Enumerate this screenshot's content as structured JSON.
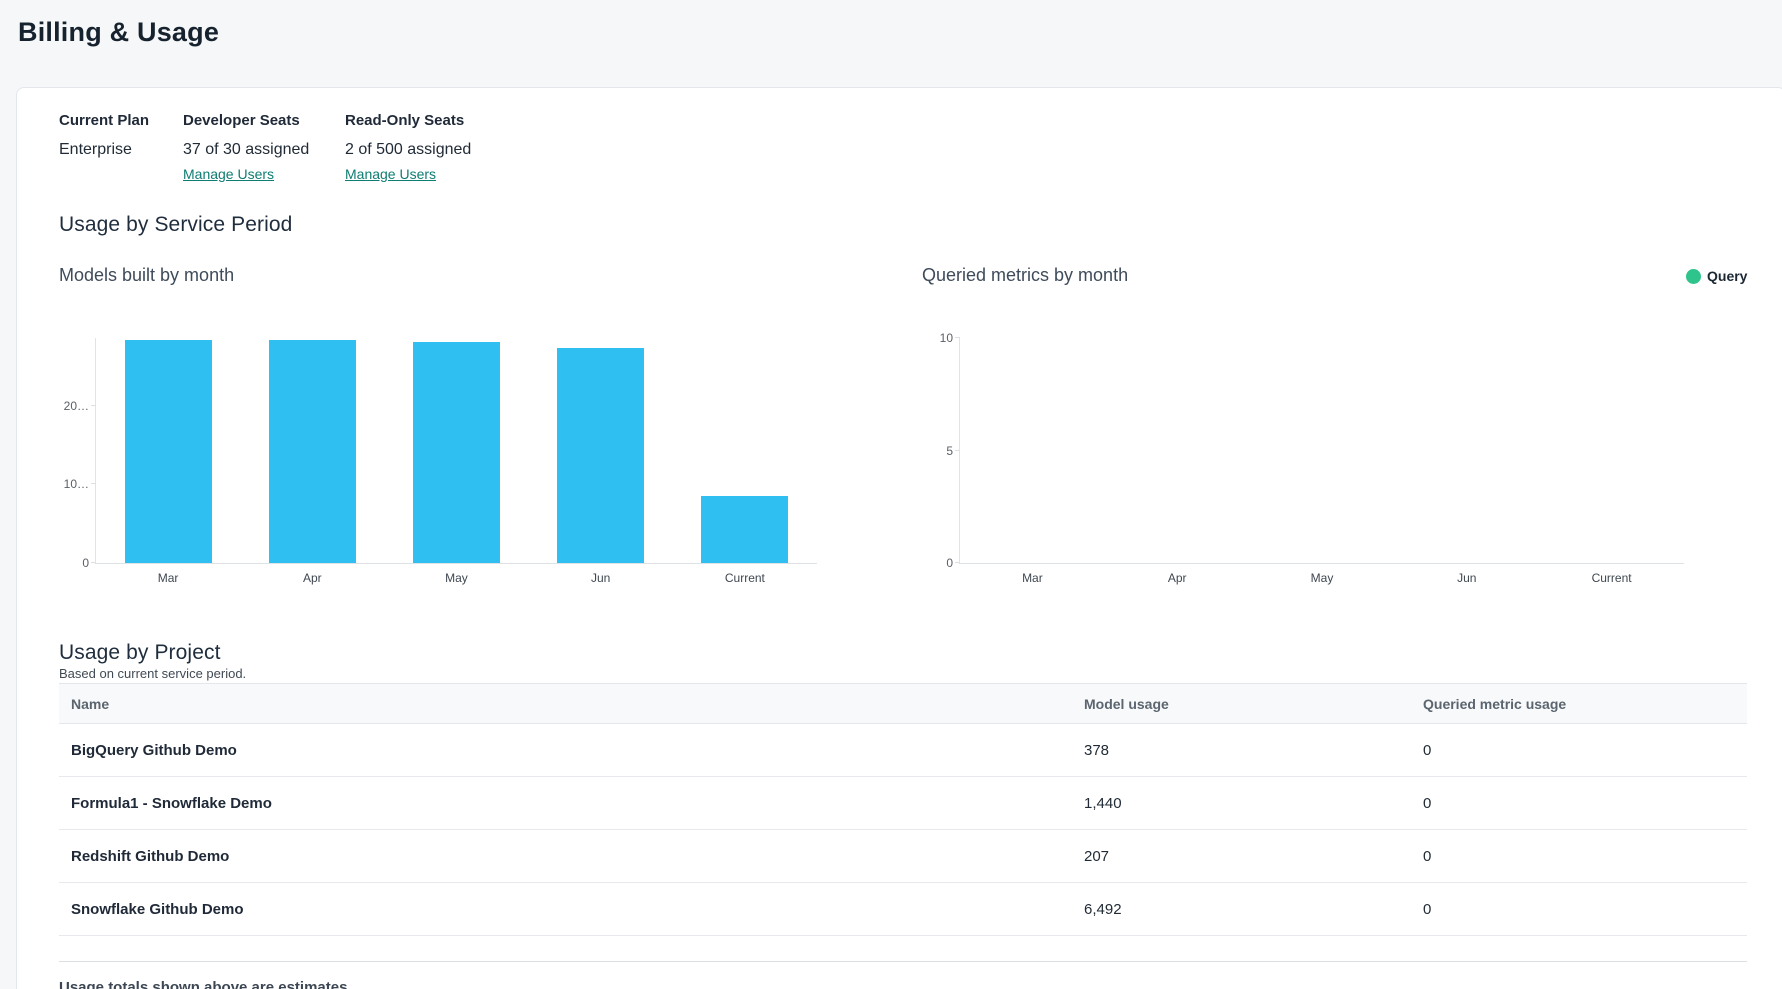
{
  "page": {
    "title": "Billing & Usage"
  },
  "plan_summary": {
    "columns": [
      {
        "label": "Current Plan",
        "value": "Enterprise"
      },
      {
        "label": "Developer Seats",
        "value": "37 of 30 assigned",
        "link": "Manage Users"
      },
      {
        "label": "Read-Only Seats",
        "value": "2 of 500 assigned",
        "link": "Manage Users"
      }
    ]
  },
  "service_period": {
    "title": "Usage by Service Period"
  },
  "chart_data": [
    {
      "type": "bar",
      "title": "Models built by month",
      "categories": [
        "Mar",
        "Apr",
        "May",
        "Jun",
        "Current"
      ],
      "values": [
        28400,
        28300,
        28100,
        27350,
        8500
      ],
      "ylim": [
        0,
        28600
      ],
      "yticks": [
        {
          "value": 0,
          "label": "0"
        },
        {
          "value": 10000,
          "label": "10…"
        },
        {
          "value": 20000,
          "label": "20…"
        }
      ],
      "bar_color": "#2fbff0",
      "grid": false,
      "legend": []
    },
    {
      "type": "bar",
      "title": "Queried metrics by month",
      "categories": [
        "Mar",
        "Apr",
        "May",
        "Jun",
        "Current"
      ],
      "values": [
        0,
        0,
        0,
        0,
        0
      ],
      "ylim": [
        0,
        10
      ],
      "yticks": [
        {
          "value": 0,
          "label": "0"
        },
        {
          "value": 5,
          "label": "5"
        },
        {
          "value": 10,
          "label": "10"
        }
      ],
      "bar_color": "#2fc48c",
      "grid": false,
      "legend": [
        {
          "name": "Query",
          "color": "#2fc48c"
        }
      ],
      "legend_position": "top-right"
    }
  ],
  "project_usage": {
    "title": "Usage by Project",
    "subtitle": "Based on current service period.",
    "table": {
      "headers": [
        "Name",
        "Model usage",
        "Queried metric usage"
      ],
      "rows": [
        {
          "name": "BigQuery Github Demo",
          "model_usage": "378",
          "queried_metric_usage": "0"
        },
        {
          "name": "Formula1 - Snowflake Demo",
          "model_usage": "1,440",
          "queried_metric_usage": "0"
        },
        {
          "name": "Redshift Github Demo",
          "model_usage": "207",
          "queried_metric_usage": "0"
        },
        {
          "name": "Snowflake Github Demo",
          "model_usage": "6,492",
          "queried_metric_usage": "0"
        }
      ]
    }
  },
  "footer": {
    "note": "Usage totals shown above are estimates"
  },
  "colors": {
    "link_teal": "#0e7d72",
    "bar_blue": "#2fbff0",
    "legend_green": "#2fc48c"
  }
}
